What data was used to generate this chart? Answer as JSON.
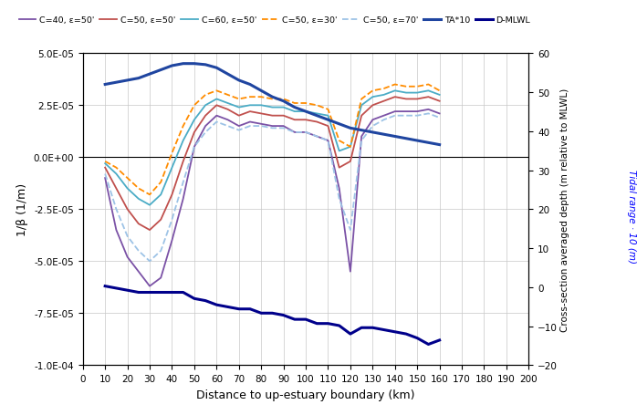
{
  "xlabel": "Distance to up-estuary boundary (km)",
  "ylabel_left": "1/β (1/m)",
  "ylabel_right": "Cross-section averaged depth (m relative to MLWL)",
  "ylabel_right_italic": "Tidal range · 10 (m)",
  "xlim": [
    0,
    200
  ],
  "ylim_left": [
    -0.0001,
    5e-05
  ],
  "ylim_right": [
    -20,
    60
  ],
  "xticks": [
    0,
    10,
    20,
    30,
    40,
    50,
    60,
    70,
    80,
    90,
    100,
    110,
    120,
    130,
    140,
    150,
    160,
    170,
    180,
    190,
    200
  ],
  "yticks_left": [
    -0.0001,
    -7.5e-05,
    -5e-05,
    -2.5e-05,
    0.0,
    2.5e-05,
    5e-05
  ],
  "ytick_labels_left": [
    "-1.0E-04",
    "-7.5E-05",
    "-5.0E-05",
    "-2.5E-05",
    "0.0E+00",
    "2.5E-05",
    "5.0E-05"
  ],
  "yticks_right": [
    -20,
    -10,
    0,
    10,
    20,
    30,
    40,
    50,
    60
  ],
  "series": [
    {
      "label": "C=40, ε=50'",
      "color": "#7B52A6",
      "linestyle": "solid",
      "linewidth": 1.3,
      "x": [
        10,
        15,
        20,
        25,
        30,
        35,
        40,
        45,
        50,
        55,
        60,
        65,
        70,
        75,
        80,
        85,
        90,
        95,
        100,
        105,
        110,
        115,
        120,
        125,
        130,
        135,
        140,
        145,
        150,
        155,
        160
      ],
      "y": [
        -1e-05,
        -3.5e-05,
        -4.8e-05,
        -5.5e-05,
        -6.2e-05,
        -5.8e-05,
        -4e-05,
        -2e-05,
        5e-06,
        1.5e-05,
        2e-05,
        1.8e-05,
        1.5e-05,
        1.7e-05,
        1.6e-05,
        1.5e-05,
        1.5e-05,
        1.2e-05,
        1.2e-05,
        1e-05,
        8e-06,
        -1.5e-05,
        -5.5e-05,
        1e-05,
        1.8e-05,
        2e-05,
        2.2e-05,
        2.2e-05,
        2.2e-05,
        2.3e-05,
        2.1e-05
      ]
    },
    {
      "label": "C=50, ε=50'",
      "color": "#C0504D",
      "linestyle": "solid",
      "linewidth": 1.3,
      "x": [
        10,
        15,
        20,
        25,
        30,
        35,
        40,
        45,
        50,
        55,
        60,
        65,
        70,
        75,
        80,
        85,
        90,
        95,
        100,
        105,
        110,
        115,
        120,
        125,
        130,
        135,
        140,
        145,
        150,
        155,
        160
      ],
      "y": [
        -5e-06,
        -1.5e-05,
        -2.5e-05,
        -3.2e-05,
        -3.5e-05,
        -3e-05,
        -1.8e-05,
        -2e-06,
        1.2e-05,
        2e-05,
        2.5e-05,
        2.3e-05,
        2e-05,
        2.2e-05,
        2.1e-05,
        2e-05,
        2e-05,
        1.8e-05,
        1.8e-05,
        1.7e-05,
        1.5e-05,
        -5e-06,
        -2e-06,
        2e-05,
        2.5e-05,
        2.7e-05,
        2.9e-05,
        2.8e-05,
        2.8e-05,
        2.9e-05,
        2.7e-05
      ]
    },
    {
      "label": "C=60, ε=50'",
      "color": "#4BACC6",
      "linestyle": "solid",
      "linewidth": 1.3,
      "x": [
        10,
        15,
        20,
        25,
        30,
        35,
        40,
        45,
        50,
        55,
        60,
        65,
        70,
        75,
        80,
        85,
        90,
        95,
        100,
        105,
        110,
        115,
        120,
        125,
        130,
        135,
        140,
        145,
        150,
        155,
        160
      ],
      "y": [
        -3e-06,
        -8e-06,
        -1.5e-05,
        -2e-05,
        -2.3e-05,
        -1.8e-05,
        -5e-06,
        8e-06,
        1.8e-05,
        2.5e-05,
        2.8e-05,
        2.6e-05,
        2.4e-05,
        2.5e-05,
        2.5e-05,
        2.4e-05,
        2.4e-05,
        2.2e-05,
        2.2e-05,
        2.1e-05,
        2e-05,
        3e-06,
        5e-06,
        2.5e-05,
        2.9e-05,
        3e-05,
        3.2e-05,
        3.1e-05,
        3.1e-05,
        3.2e-05,
        3e-05
      ]
    },
    {
      "label": "C=50, ε=30'",
      "color": "#FF8C00",
      "linestyle": "dashed",
      "linewidth": 1.3,
      "x": [
        10,
        15,
        20,
        25,
        30,
        35,
        40,
        45,
        50,
        55,
        60,
        65,
        70,
        75,
        80,
        85,
        90,
        95,
        100,
        105,
        110,
        115,
        120,
        125,
        130,
        135,
        140,
        145,
        150,
        155,
        160
      ],
      "y": [
        -2e-06,
        -5e-06,
        -1e-05,
        -1.5e-05,
        -1.8e-05,
        -1.2e-05,
        2e-06,
        1.5e-05,
        2.5e-05,
        3e-05,
        3.2e-05,
        3e-05,
        2.8e-05,
        2.9e-05,
        2.9e-05,
        2.8e-05,
        2.8e-05,
        2.6e-05,
        2.6e-05,
        2.5e-05,
        2.3e-05,
        8e-06,
        5e-06,
        2.8e-05,
        3.2e-05,
        3.3e-05,
        3.5e-05,
        3.4e-05,
        3.4e-05,
        3.5e-05,
        3.2e-05
      ]
    },
    {
      "label": "C=50, ε=70'",
      "color": "#9DC3E6",
      "linestyle": "dashed",
      "linewidth": 1.3,
      "x": [
        10,
        15,
        20,
        25,
        30,
        35,
        40,
        45,
        50,
        55,
        60,
        65,
        70,
        75,
        80,
        85,
        90,
        95,
        100,
        105,
        110,
        115,
        120,
        125,
        130,
        135,
        140,
        145,
        150,
        155,
        160
      ],
      "y": [
        -8e-06,
        -2.5e-05,
        -3.8e-05,
        -4.5e-05,
        -5e-05,
        -4.5e-05,
        -3e-05,
        -1.2e-05,
        5e-06,
        1.2e-05,
        1.7e-05,
        1.5e-05,
        1.3e-05,
        1.5e-05,
        1.5e-05,
        1.4e-05,
        1.4e-05,
        1.2e-05,
        1.2e-05,
        1e-05,
        8e-06,
        -2e-05,
        -3.5e-05,
        8e-06,
        1.5e-05,
        1.8e-05,
        2e-05,
        2e-05,
        2e-05,
        2.1e-05,
        1.9e-05
      ]
    },
    {
      "label": "TA*10",
      "color": "#1F45A0",
      "linestyle": "solid",
      "linewidth": 2.2,
      "x": [
        10,
        15,
        20,
        25,
        30,
        35,
        40,
        45,
        50,
        55,
        60,
        65,
        70,
        75,
        80,
        85,
        90,
        95,
        100,
        105,
        110,
        115,
        120,
        125,
        130,
        135,
        140,
        145,
        150,
        155,
        160
      ],
      "y": [
        3.5e-05,
        3.6e-05,
        3.7e-05,
        3.8e-05,
        4e-05,
        4.2e-05,
        4.4e-05,
        4.5e-05,
        4.5e-05,
        4.45e-05,
        4.3e-05,
        4e-05,
        3.7e-05,
        3.5e-05,
        3.2e-05,
        2.9e-05,
        2.7e-05,
        2.4e-05,
        2.2e-05,
        2e-05,
        1.8e-05,
        1.6e-05,
        1.4e-05,
        1.3e-05,
        1.2e-05,
        1.1e-05,
        1e-05,
        9e-06,
        8e-06,
        7e-06,
        6e-06
      ]
    },
    {
      "label": "D-MLWL",
      "color": "#00008B",
      "linestyle": "solid",
      "linewidth": 2.2,
      "x": [
        10,
        15,
        20,
        25,
        30,
        35,
        40,
        45,
        50,
        55,
        60,
        65,
        70,
        75,
        80,
        85,
        90,
        95,
        100,
        105,
        110,
        115,
        120,
        125,
        130,
        135,
        140,
        145,
        150,
        155,
        160
      ],
      "y": [
        -6.2e-05,
        -6.3e-05,
        -6.4e-05,
        -6.5e-05,
        -6.5e-05,
        -6.5e-05,
        -6.5e-05,
        -6.5e-05,
        -6.8e-05,
        -6.9e-05,
        -7.1e-05,
        -7.2e-05,
        -7.3e-05,
        -7.3e-05,
        -7.5e-05,
        -7.5e-05,
        -7.6e-05,
        -7.8e-05,
        -7.8e-05,
        -8e-05,
        -8e-05,
        -8.1e-05,
        -8.5e-05,
        -8.2e-05,
        -8.2e-05,
        -8.3e-05,
        -8.4e-05,
        -8.5e-05,
        -8.7e-05,
        -9e-05,
        -8.8e-05
      ]
    }
  ],
  "legend_colors": [
    "#7B52A6",
    "#C0504D",
    "#4BACC6",
    "#FF8C00",
    "#9DC3E6",
    "#1F45A0",
    "#00008B"
  ],
  "legend_labels": [
    "C=40, ε=50'",
    "C=50, ε=50'",
    "C=60, ε=50'",
    "C=50, ε=30'",
    "C=50, ε=70'",
    "TA*10",
    "D-MLWL"
  ],
  "legend_linestyles": [
    "solid",
    "solid",
    "solid",
    "dashed",
    "dashed",
    "solid",
    "solid"
  ],
  "legend_linewidths": [
    1.3,
    1.3,
    1.3,
    1.3,
    1.3,
    2.2,
    2.2
  ]
}
